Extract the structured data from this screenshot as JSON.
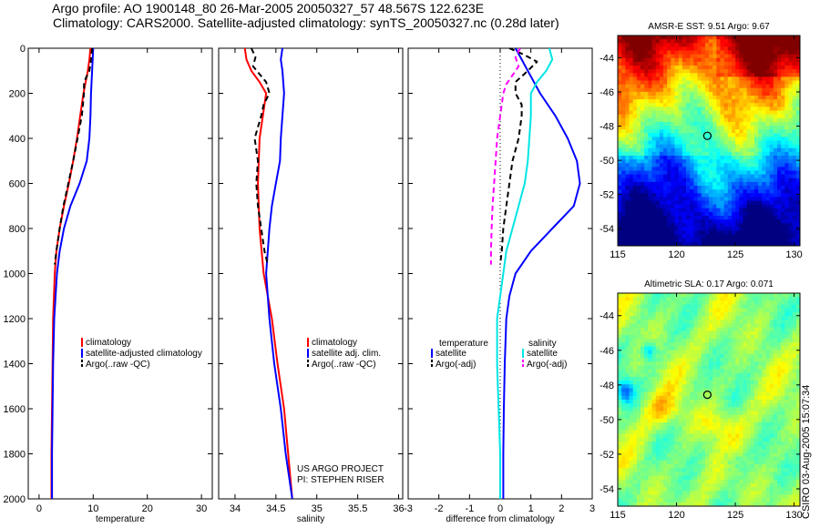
{
  "header": {
    "title_line1": "Argo profile: AO 1900148_80 26-Mar-2005 20050327_57 48.567S 122.623E",
    "title_line2": "Climatology: CARS2000. Satellite-adjusted climatology: synTS_20050327.nc (0.28d later)"
  },
  "side_label": "CSIRO 03-Aug-2005 15:07:34",
  "colors": {
    "climatology": "#ff0000",
    "satellite": "#0000ff",
    "argo": "#000000",
    "sal_satellite": "#00e5e5",
    "sal_argo": "#ff00ff"
  },
  "chart_data": [
    {
      "type": "line",
      "id": "temperature",
      "xlabel": "temperature",
      "xlim": [
        -2,
        32
      ],
      "ylim": [
        2000,
        0
      ],
      "xticks": [
        0,
        10,
        20,
        30
      ],
      "yticks": [
        0,
        200,
        400,
        600,
        800,
        1000,
        1200,
        1400,
        1600,
        1800,
        2000
      ],
      "legend": [
        "climatology",
        "satellite-adjusted climatology",
        "Argo(..raw  -QC)"
      ],
      "series": [
        {
          "name": "climatology",
          "style": "solid",
          "color": "#ff0000",
          "depth": [
            0,
            50,
            100,
            150,
            200,
            300,
            400,
            500,
            600,
            700,
            800,
            900,
            1000,
            1200,
            1400,
            1600,
            1800,
            2000
          ],
          "values": [
            9.5,
            9.3,
            9.0,
            8.6,
            8.2,
            7.6,
            7.0,
            6.3,
            5.5,
            4.6,
            3.8,
            3.2,
            2.9,
            2.6,
            2.5,
            2.4,
            2.3,
            2.3
          ]
        },
        {
          "name": "satellite-adjusted climatology",
          "style": "solid",
          "color": "#0000ff",
          "depth": [
            0,
            50,
            100,
            200,
            300,
            400,
            500,
            600,
            700,
            800,
            900,
            1000,
            1200,
            1400,
            1600,
            1800,
            2000
          ],
          "values": [
            10.0,
            9.9,
            9.8,
            9.6,
            9.5,
            9.3,
            8.8,
            7.5,
            5.8,
            4.6,
            3.8,
            3.3,
            2.8,
            2.6,
            2.5,
            2.4,
            2.4
          ]
        },
        {
          "name": "Argo(..raw  -QC)",
          "style": "dashed",
          "color": "#000000",
          "depth": [
            0,
            50,
            100,
            150,
            200,
            300,
            400,
            500,
            600,
            700,
            800,
            900,
            960
          ],
          "values": [
            9.8,
            9.6,
            9.3,
            8.3,
            8.3,
            7.9,
            7.1,
            6.3,
            5.4,
            4.5,
            3.8,
            3.2,
            2.9
          ]
        }
      ]
    },
    {
      "type": "line",
      "id": "salinity",
      "xlabel": "salinity",
      "xlim": [
        33.8,
        36.05
      ],
      "ylim": [
        2000,
        0
      ],
      "xticks": [
        34,
        34.5,
        35,
        35.5,
        36
      ],
      "legend": [
        "climatology",
        "satellite adj. clim.",
        "Argo(..raw  -QC)"
      ],
      "series": [
        {
          "name": "climatology",
          "style": "solid",
          "color": "#ff0000",
          "depth": [
            0,
            50,
            100,
            150,
            200,
            300,
            400,
            600,
            800,
            1000,
            1200,
            1400,
            1600,
            1800,
            2000
          ],
          "values": [
            34.12,
            34.14,
            34.2,
            34.3,
            34.38,
            34.34,
            34.3,
            34.28,
            34.3,
            34.35,
            34.45,
            34.52,
            34.6,
            34.65,
            34.7
          ]
        },
        {
          "name": "satellite adj. clim.",
          "style": "solid",
          "color": "#0000ff",
          "depth": [
            0,
            50,
            100,
            200,
            300,
            400,
            500,
            600,
            700,
            800,
            1000,
            1200,
            1400,
            1600,
            1800,
            2000
          ],
          "values": [
            34.58,
            34.56,
            34.58,
            34.6,
            34.58,
            34.56,
            34.55,
            34.5,
            34.45,
            34.42,
            34.38,
            34.42,
            34.48,
            34.56,
            34.62,
            34.7
          ]
        },
        {
          "name": "Argo(..raw  -QC)",
          "style": "dashed",
          "color": "#000000",
          "depth": [
            0,
            40,
            80,
            150,
            200,
            250,
            300,
            350,
            400,
            450,
            500,
            600,
            700,
            800,
            900,
            960
          ],
          "values": [
            34.2,
            34.25,
            34.22,
            34.38,
            34.42,
            34.35,
            34.32,
            34.28,
            34.24,
            34.26,
            34.28,
            34.26,
            34.28,
            34.32,
            34.36,
            34.4
          ]
        }
      ],
      "annotations": [
        "US ARGO PROJECT",
        "PI: STEPHEN RISER"
      ]
    },
    {
      "type": "line",
      "id": "difference",
      "xlabel": "difference from climatology",
      "xlim": [
        -3,
        3
      ],
      "ylim": [
        2000,
        0
      ],
      "xticks": [
        -3,
        -2,
        -1,
        0,
        1,
        2,
        3
      ],
      "legend_left_title": "temperature",
      "legend_left": [
        "satellite",
        "Argo(-adj)"
      ],
      "legend_right_title": "salinity",
      "legend_right": [
        "satellite",
        "Argo(-adj)"
      ],
      "series": [
        {
          "name": "temperature satellite",
          "style": "solid",
          "color": "#0000ff",
          "depth": [
            0,
            50,
            100,
            200,
            300,
            400,
            500,
            600,
            700,
            800,
            900,
            1000,
            1100,
            1200,
            1400,
            1600,
            1800,
            2000
          ],
          "values": [
            0.5,
            0.7,
            0.9,
            1.3,
            1.8,
            2.2,
            2.5,
            2.6,
            2.4,
            1.7,
            1.0,
            0.5,
            0.3,
            0.2,
            0.15,
            0.12,
            0.1,
            0.1
          ]
        },
        {
          "name": "temperature Argo(-adj)",
          "style": "dashed",
          "color": "#000000",
          "depth": [
            0,
            30,
            60,
            100,
            150,
            200,
            250,
            300,
            400,
            500,
            600,
            700,
            800,
            900,
            960
          ],
          "values": [
            0.3,
            0.8,
            1.2,
            0.9,
            0.5,
            0.5,
            0.7,
            0.7,
            0.6,
            0.4,
            0.3,
            0.2,
            0.1,
            0.05,
            0.0
          ]
        },
        {
          "name": "salinity satellite",
          "style": "solid",
          "color": "#00e5e5",
          "depth": [
            0,
            50,
            100,
            150,
            200,
            300,
            400,
            500,
            600,
            700,
            800,
            900,
            1000,
            1200,
            1400,
            1600,
            1800,
            2000
          ],
          "values": [
            1.6,
            1.7,
            1.5,
            1.2,
            1.0,
            1.0,
            0.95,
            0.9,
            0.8,
            0.6,
            0.4,
            0.2,
            0.1,
            -0.1,
            -0.1,
            -0.05,
            0.0,
            0.0
          ]
        },
        {
          "name": "salinity Argo(-adj)",
          "style": "dashed",
          "color": "#ff00ff",
          "depth": [
            0,
            40,
            80,
            120,
            160,
            200,
            300,
            400,
            500,
            600,
            700,
            800,
            900,
            960
          ],
          "values": [
            0.65,
            0.5,
            0.6,
            0.4,
            0.2,
            0.1,
            0.0,
            -0.1,
            -0.15,
            -0.2,
            -0.25,
            -0.28,
            -0.3,
            -0.3
          ]
        }
      ]
    },
    {
      "type": "heatmap",
      "id": "sst-map",
      "title": "AMSR-E SST: 9.51 Argo: 9.67",
      "xlim": [
        115,
        130.5
      ],
      "ylim": [
        -55,
        -42.7
      ],
      "xticks": [
        115,
        120,
        125,
        130
      ],
      "yticks": [
        -44,
        -46,
        -48,
        -50,
        -52,
        -54
      ],
      "marker": {
        "lon": 122.623,
        "lat": -48.567
      }
    },
    {
      "type": "heatmap",
      "id": "sla-map",
      "title": "Altimetric SLA: 0.17 Argo: 0.071",
      "xlim": [
        115,
        130.5
      ],
      "ylim": [
        -55,
        -42.7
      ],
      "xticks": [
        115,
        120,
        125,
        130
      ],
      "yticks": [
        -44,
        -46,
        -48,
        -50,
        -52,
        -54
      ],
      "marker": {
        "lon": 122.623,
        "lat": -48.567
      }
    }
  ]
}
